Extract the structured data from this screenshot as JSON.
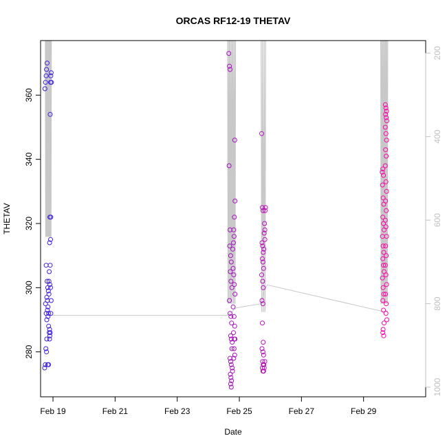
{
  "chart_data": {
    "type": "scatter",
    "title": "ORCAS RF12-19 THETAV",
    "xlabel": "Date",
    "ylabel": "THETAV",
    "x_ticks": [
      "Feb 19",
      "Feb 21",
      "Feb 23",
      "Feb 25",
      "Feb 27",
      "Feb 29"
    ],
    "x_tick_days": [
      19,
      21,
      23,
      25,
      27,
      29
    ],
    "xlim": [
      18.6,
      31.0
    ],
    "ylim": [
      266,
      377
    ],
    "y_ticks": [
      280,
      300,
      320,
      340,
      360
    ],
    "y_right_ticks": [
      200,
      400,
      600,
      800,
      1000
    ],
    "y_right_lim": [
      1023,
      170
    ],
    "color_start": "#3a1fd9",
    "color_end": "#ff00a8",
    "trace_color": "#c8c8c8",
    "right_axis_color": "#c0c0c0",
    "series": [
      {
        "values": [
          [
            18.74,
            362
          ],
          [
            18.76,
            364
          ],
          [
            18.78,
            366
          ],
          [
            18.79,
            368
          ],
          [
            18.81,
            370
          ],
          [
            18.73,
            275
          ],
          [
            18.75,
            276
          ],
          [
            18.77,
            281
          ],
          [
            18.79,
            280
          ],
          [
            18.8,
            284
          ],
          [
            18.76,
            295
          ],
          [
            18.78,
            292
          ],
          [
            18.8,
            290
          ],
          [
            18.82,
            293
          ],
          [
            18.84,
            291
          ],
          [
            18.86,
            288
          ],
          [
            18.78,
            307
          ],
          [
            18.81,
            302
          ],
          [
            18.83,
            300
          ],
          [
            18.85,
            299
          ],
          [
            18.87,
            298
          ],
          [
            18.8,
            297
          ],
          [
            18.82,
            296
          ],
          [
            18.84,
            294
          ],
          [
            18.86,
            292
          ],
          [
            18.88,
            286
          ],
          [
            18.9,
            285
          ],
          [
            18.89,
            287
          ],
          [
            18.91,
            286
          ],
          [
            18.87,
            302
          ],
          [
            18.9,
            301
          ],
          [
            18.92,
            300
          ],
          [
            18.88,
            305
          ],
          [
            18.91,
            307
          ],
          [
            18.89,
            314
          ],
          [
            18.92,
            315
          ],
          [
            18.9,
            322
          ],
          [
            18.93,
            322
          ],
          [
            18.91,
            354
          ],
          [
            18.92,
            364
          ],
          [
            18.93,
            366
          ],
          [
            18.94,
            367
          ],
          [
            18.95,
            364
          ],
          [
            18.83,
            276
          ],
          [
            18.86,
            276
          ],
          [
            18.94,
            296
          ],
          [
            18.93,
            292
          ],
          [
            18.89,
            284
          ]
        ]
      },
      {
        "values": [
          [
            24.66,
            373
          ],
          [
            24.68,
            369
          ],
          [
            24.7,
            368
          ],
          [
            24.67,
            338
          ],
          [
            24.7,
            318
          ],
          [
            24.69,
            313
          ],
          [
            24.72,
            310
          ],
          [
            24.74,
            308
          ],
          [
            24.71,
            305
          ],
          [
            24.73,
            302
          ],
          [
            24.76,
            300
          ],
          [
            24.68,
            296
          ],
          [
            24.7,
            292
          ],
          [
            24.73,
            291
          ],
          [
            24.75,
            289
          ],
          [
            24.72,
            285
          ],
          [
            24.74,
            284
          ],
          [
            24.77,
            283
          ],
          [
            24.76,
            281
          ],
          [
            24.7,
            278
          ],
          [
            24.72,
            277
          ],
          [
            24.74,
            276
          ],
          [
            24.77,
            275
          ],
          [
            24.71,
            273
          ],
          [
            24.73,
            272
          ],
          [
            24.75,
            271
          ],
          [
            24.72,
            270
          ],
          [
            24.74,
            269
          ],
          [
            24.79,
            312
          ],
          [
            24.81,
            314
          ],
          [
            24.83,
            316
          ],
          [
            24.82,
            318
          ],
          [
            24.84,
            322
          ],
          [
            24.86,
            327
          ],
          [
            24.85,
            346
          ],
          [
            24.8,
            306
          ],
          [
            24.82,
            304
          ],
          [
            24.84,
            301
          ],
          [
            24.86,
            298
          ],
          [
            24.8,
            294
          ],
          [
            24.83,
            291
          ],
          [
            24.85,
            288
          ],
          [
            24.81,
            286
          ],
          [
            24.84,
            284
          ],
          [
            24.86,
            284
          ],
          [
            24.83,
            281
          ],
          [
            24.85,
            279
          ],
          [
            24.82,
            278
          ],
          [
            24.78,
            274
          ]
        ]
      },
      {
        "values": [
          [
            25.72,
            348
          ],
          [
            25.74,
            325
          ],
          [
            25.76,
            324
          ],
          [
            25.73,
            314
          ],
          [
            25.75,
            313
          ],
          [
            25.77,
            311
          ],
          [
            25.74,
            309
          ],
          [
            25.76,
            308
          ],
          [
            25.78,
            306
          ],
          [
            25.72,
            304
          ],
          [
            25.75,
            302
          ],
          [
            25.77,
            300
          ],
          [
            25.73,
            296
          ],
          [
            25.76,
            295
          ],
          [
            25.74,
            289
          ],
          [
            25.77,
            283
          ],
          [
            25.73,
            281
          ],
          [
            25.76,
            280
          ],
          [
            25.78,
            279
          ],
          [
            25.75,
            277
          ],
          [
            25.77,
            276
          ],
          [
            25.79,
            276
          ],
          [
            25.74,
            275
          ],
          [
            25.76,
            274
          ],
          [
            25.78,
            274
          ],
          [
            25.8,
            275
          ],
          [
            25.82,
            277
          ],
          [
            25.81,
            320
          ],
          [
            25.82,
            318
          ],
          [
            25.83,
            324
          ],
          [
            25.84,
            325
          ],
          [
            25.8,
            317
          ],
          [
            25.82,
            315
          ],
          [
            25.79,
            312
          ]
        ]
      },
      {
        "values": [
          [
            29.6,
            336
          ],
          [
            29.62,
            337
          ],
          [
            29.64,
            335
          ],
          [
            29.61,
            332
          ],
          [
            29.63,
            328
          ],
          [
            29.65,
            326
          ],
          [
            29.62,
            322
          ],
          [
            29.64,
            320
          ],
          [
            29.66,
            318
          ],
          [
            29.61,
            316
          ],
          [
            29.63,
            313
          ],
          [
            29.65,
            311
          ],
          [
            29.62,
            309
          ],
          [
            29.64,
            307
          ],
          [
            29.66,
            305
          ],
          [
            29.61,
            303
          ],
          [
            29.63,
            300
          ],
          [
            29.65,
            298
          ],
          [
            29.62,
            296
          ],
          [
            29.64,
            293
          ],
          [
            29.66,
            289
          ],
          [
            29.63,
            287
          ],
          [
            29.62,
            286
          ],
          [
            29.65,
            285
          ],
          [
            29.7,
            357
          ],
          [
            29.72,
            356
          ],
          [
            29.74,
            355
          ],
          [
            29.71,
            354
          ],
          [
            29.73,
            353
          ],
          [
            29.75,
            352
          ],
          [
            29.7,
            350
          ],
          [
            29.72,
            348
          ],
          [
            29.74,
            346
          ],
          [
            29.71,
            343
          ],
          [
            29.73,
            341
          ],
          [
            29.7,
            338
          ],
          [
            29.72,
            333
          ],
          [
            29.74,
            330
          ],
          [
            29.71,
            327
          ],
          [
            29.73,
            324
          ],
          [
            29.7,
            321
          ],
          [
            29.72,
            319
          ],
          [
            29.74,
            316
          ],
          [
            29.71,
            313
          ],
          [
            29.73,
            310
          ],
          [
            29.7,
            307
          ],
          [
            29.72,
            304
          ],
          [
            29.74,
            301
          ],
          [
            29.71,
            298
          ],
          [
            29.73,
            295
          ],
          [
            29.72,
            292
          ],
          [
            29.75,
            290
          ]
        ]
      }
    ]
  }
}
